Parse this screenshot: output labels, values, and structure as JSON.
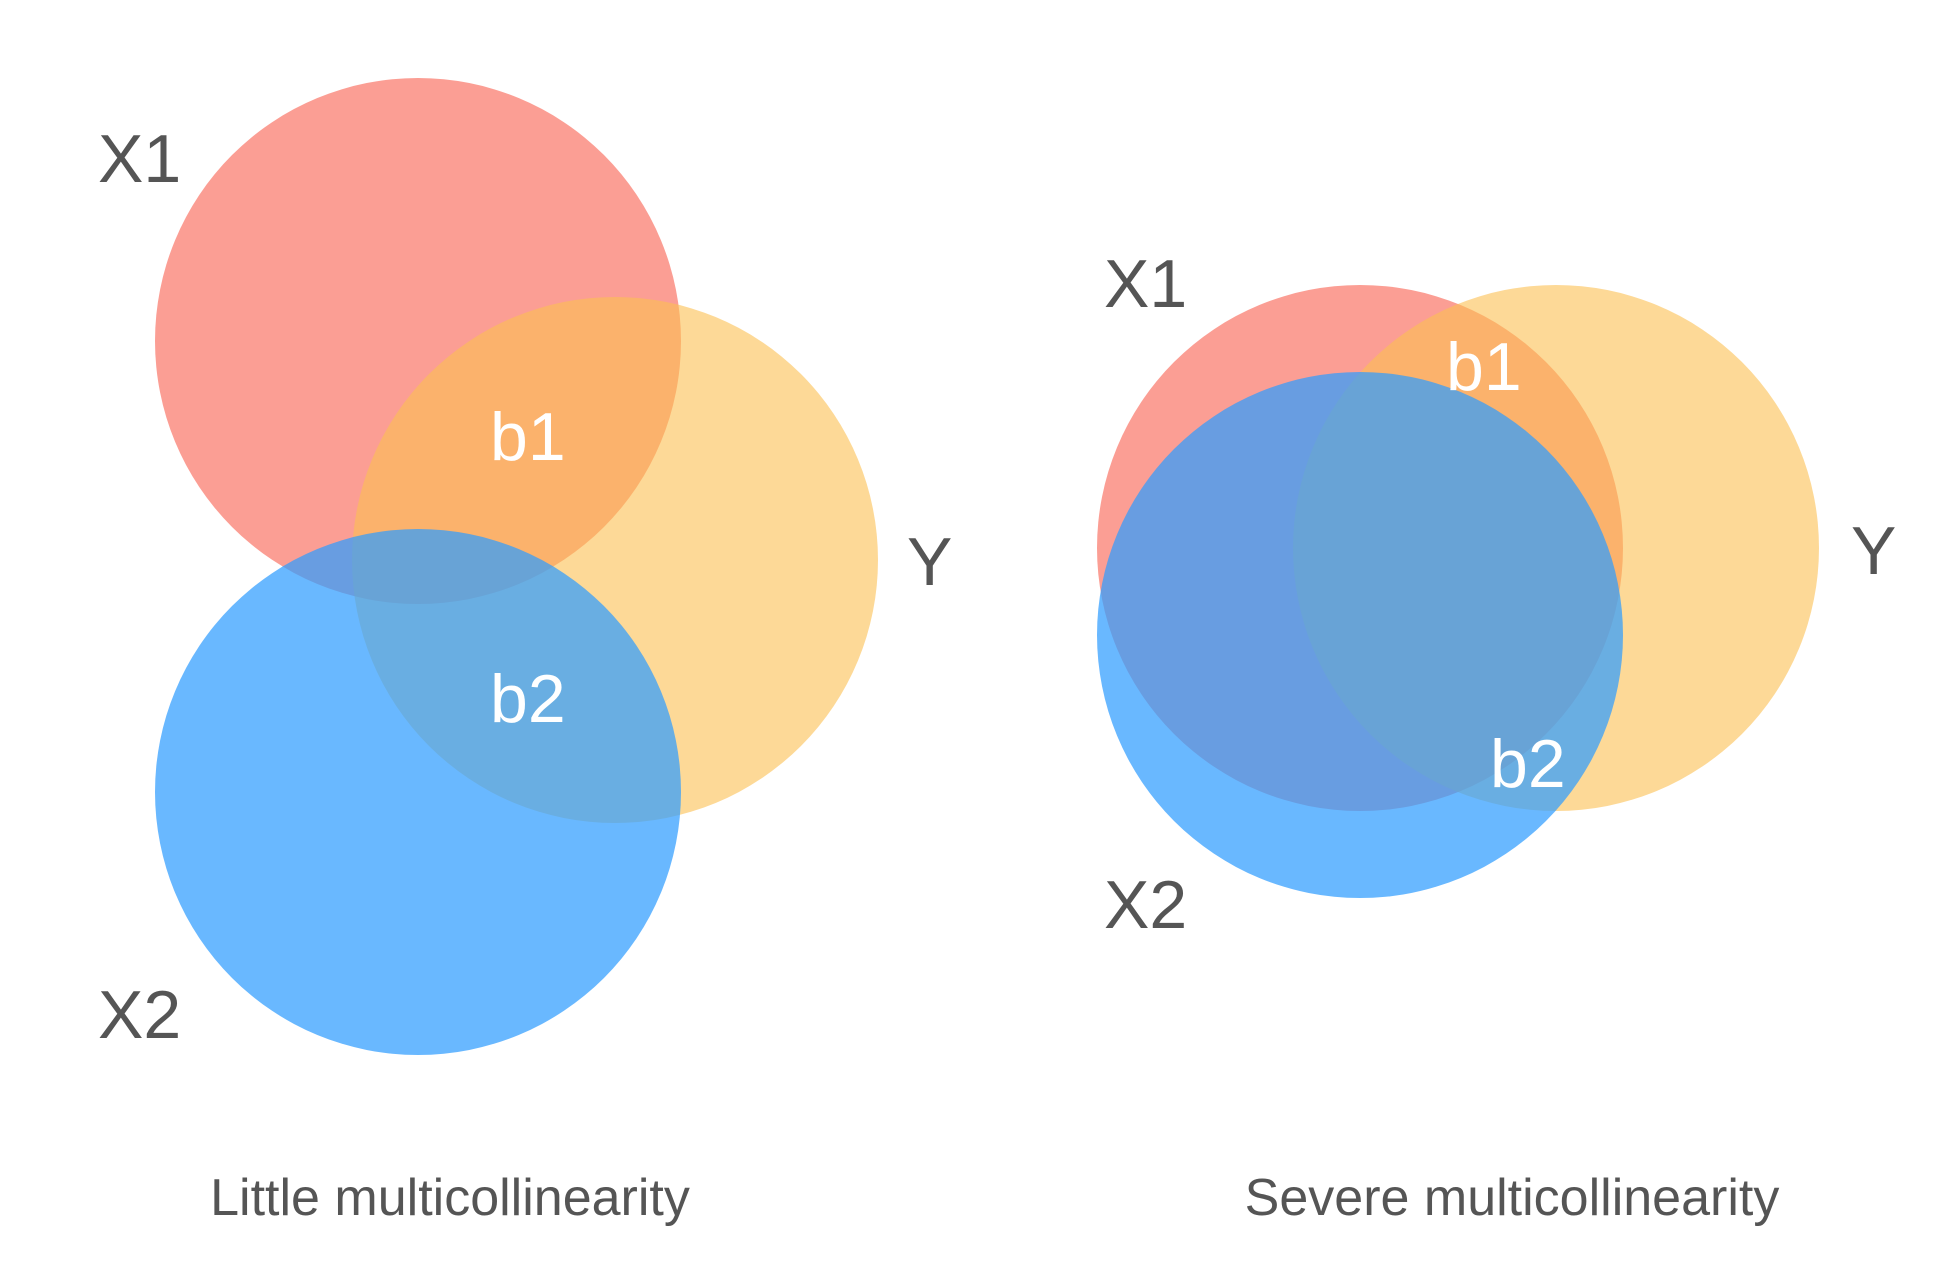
{
  "colors": {
    "x1": "#fa7566",
    "y": "#fbbf52",
    "x2": "#2f9dff",
    "text_dark": "#555555",
    "text_light": "#ffffff"
  },
  "panels": [
    {
      "caption": "Little multicollinearity",
      "labels": {
        "x1": "X1",
        "x2": "X2",
        "y": "Y",
        "b1": "b1",
        "b2": "b2"
      }
    },
    {
      "caption": "Severe multicollinearity",
      "labels": {
        "x1": "X1",
        "x2": "X2",
        "y": "Y",
        "b1": "b1",
        "b2": "b2"
      }
    }
  ]
}
